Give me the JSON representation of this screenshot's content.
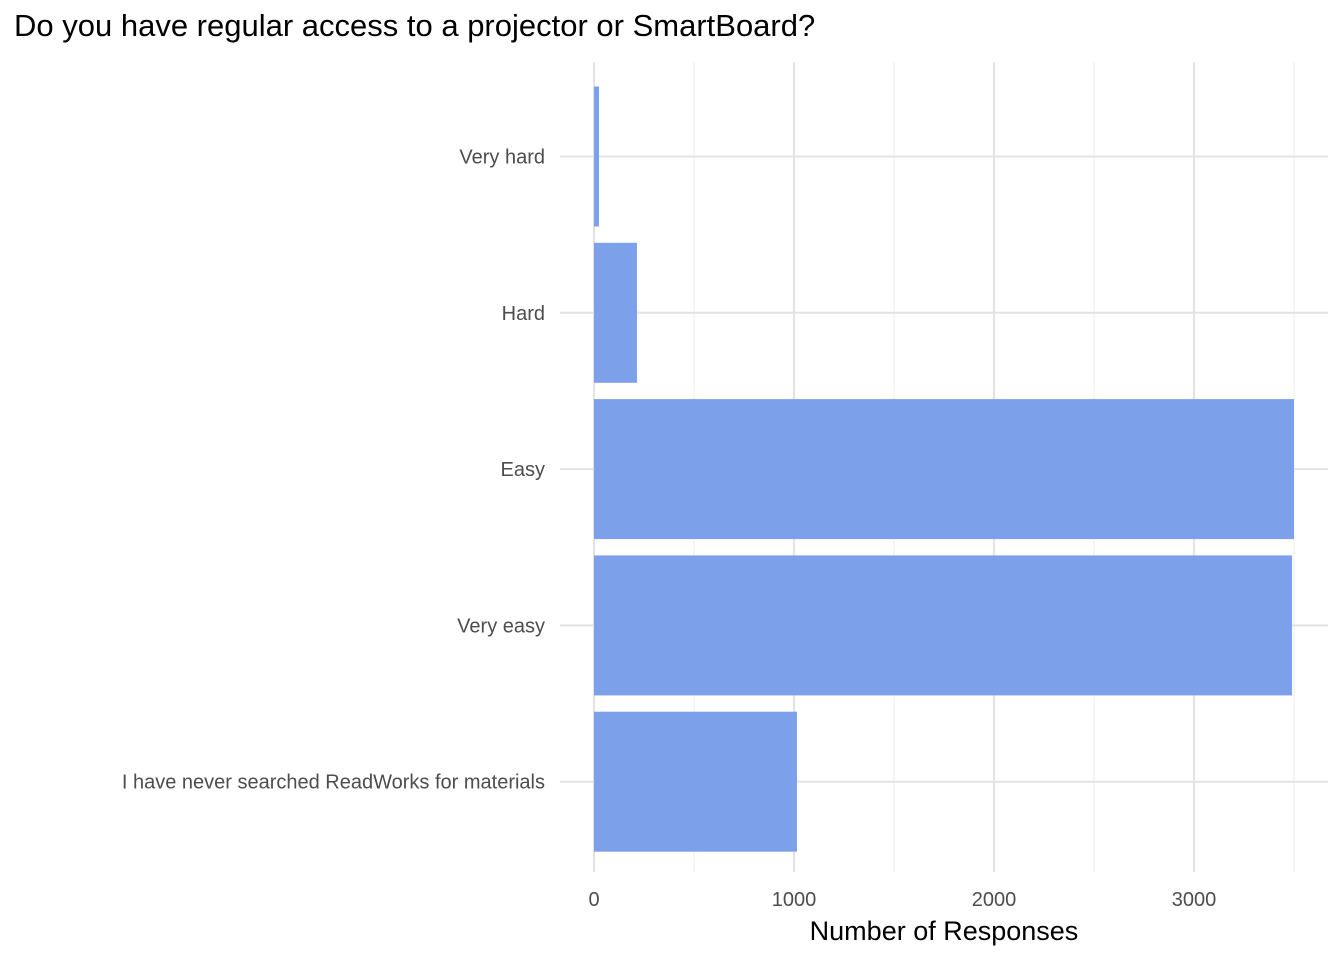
{
  "chart_data": {
    "type": "bar",
    "orientation": "horizontal",
    "title": "Do you have regular access to a projector or SmartBoard?",
    "xlabel": "Number of Responses",
    "ylabel": "",
    "categories": [
      "Very hard",
      "Hard",
      "Easy",
      "Very easy",
      "I have never searched ReadWorks for materials"
    ],
    "values": [
      25,
      215,
      3500,
      3490,
      1015
    ],
    "xlim": [
      0,
      3650
    ],
    "xticks": [
      0,
      1000,
      2000,
      3000
    ],
    "grid": true,
    "bar_color": "#7da0eb"
  }
}
